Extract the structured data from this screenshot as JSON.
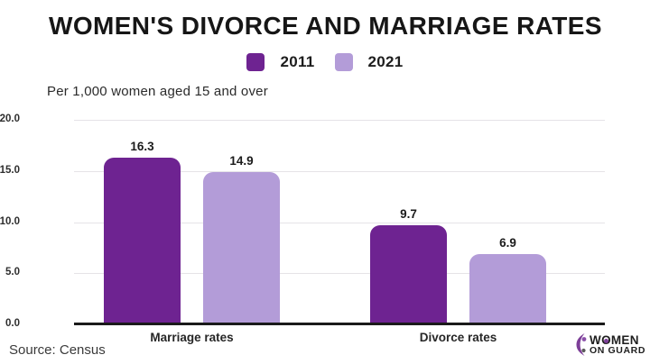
{
  "header": {
    "title": "WOMEN'S DIVORCE AND MARRIAGE RATES"
  },
  "subtitle": "Per 1,000 women aged 15 and over",
  "source": "Source: Census",
  "logo": {
    "word_start": "W",
    "letter_o": "O",
    "word_end": "MEN",
    "line2": "ON GUARD",
    "icon": "women-on-guard-figure-icon",
    "icon_color": "#7d3f98"
  },
  "colors": {
    "series_2011": "#6e2391",
    "series_2021": "#b39cd8",
    "gridline": "#e5e3e7",
    "axis": "#1a1a1a"
  },
  "chart_data": {
    "type": "bar",
    "title": "WOMEN'S DIVORCE AND MARRIAGE RATES",
    "subtitle": "Per 1,000 women aged 15 and over",
    "categories": [
      "Marriage rates",
      "Divorce rates"
    ],
    "series": [
      {
        "name": "2011",
        "color": "#6e2391",
        "values": [
          16.3,
          9.7
        ]
      },
      {
        "name": "2021",
        "color": "#b39cd8",
        "values": [
          14.9,
          6.9
        ]
      }
    ],
    "xlabel": "",
    "ylabel": "Per 1,000 women aged 15 and over",
    "ylim": [
      0,
      20
    ],
    "yticks": [
      0,
      5,
      10,
      15,
      20
    ],
    "ytick_format": "one_decimal",
    "grid": "horizontal",
    "legend_position": "top-center",
    "source": "Source: Census"
  }
}
